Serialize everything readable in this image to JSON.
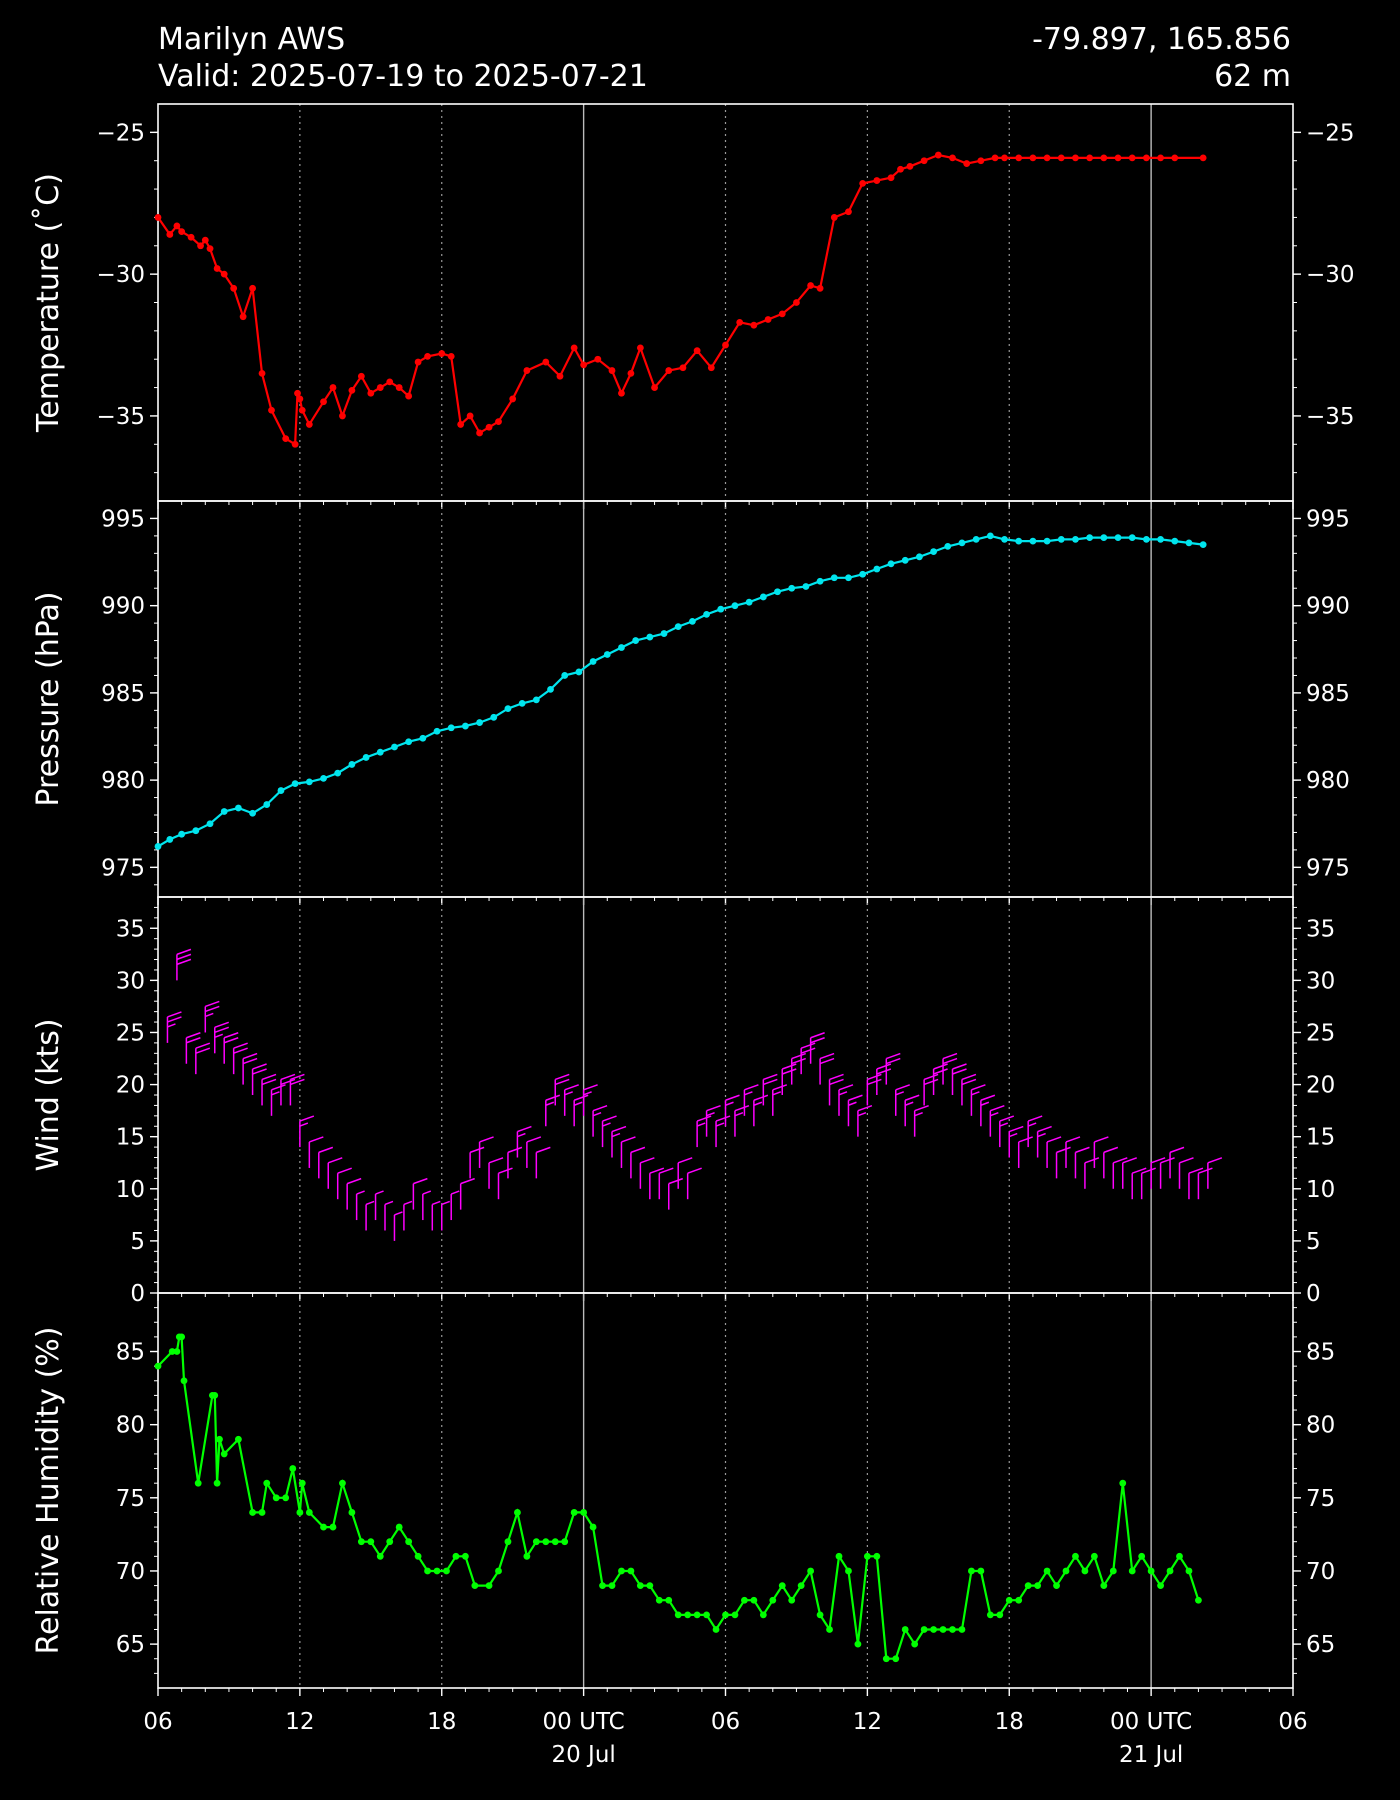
{
  "header": {
    "station": "Marilyn AWS",
    "valid": "Valid: 2025-07-19 to 2025-07-21",
    "coords": "-79.897, 165.856",
    "elevation": "62 m"
  },
  "x_ticks": [
    {
      "hour": 0,
      "label": "06",
      "sub": ""
    },
    {
      "hour": 6,
      "label": "12",
      "sub": ""
    },
    {
      "hour": 12,
      "label": "18",
      "sub": ""
    },
    {
      "hour": 18,
      "label": "00 UTC",
      "sub": "20 Jul"
    },
    {
      "hour": 24,
      "label": "06",
      "sub": ""
    },
    {
      "hour": 30,
      "label": "12",
      "sub": ""
    },
    {
      "hour": 36,
      "label": "18",
      "sub": ""
    },
    {
      "hour": 42,
      "label": "00 UTC",
      "sub": "21 Jul"
    },
    {
      "hour": 48,
      "label": "06",
      "sub": ""
    }
  ],
  "colors": {
    "temperature": "#ff0000",
    "pressure": "#00e5ee",
    "wind": "#ff00ff",
    "humidity": "#00ff00"
  },
  "chart_data": [
    {
      "type": "line",
      "ylabel": "Temperature ($^\\circ$C)",
      "ylabel_display": "Temperature (˚C)",
      "ylim": [
        -38.0,
        -24.0
      ],
      "yticks": [
        -25,
        -30,
        -35
      ],
      "ytick_labels": [
        "−25",
        "−30",
        "−35"
      ],
      "x_hours_since": "2025-07-19 06 UTC",
      "x": [
        0,
        0.5,
        0.8,
        1.0,
        1.4,
        1.8,
        2.0,
        2.2,
        2.5,
        2.8,
        3.2,
        3.6,
        4.0,
        4.4,
        4.8,
        5.4,
        5.8,
        5.9,
        6.0,
        6.1,
        6.4,
        7.0,
        7.4,
        7.8,
        8.2,
        8.6,
        9.0,
        9.4,
        9.8,
        10.2,
        10.6,
        11.0,
        11.4,
        12.0,
        12.4,
        12.8,
        13.2,
        13.6,
        14.0,
        14.4,
        15.0,
        15.6,
        16.4,
        17.0,
        17.6,
        18.0,
        18.6,
        19.2,
        19.6,
        20.0,
        20.4,
        21.0,
        21.6,
        22.2,
        22.8,
        23.4,
        24.0,
        24.6,
        25.2,
        25.8,
        26.4,
        27.0,
        27.6,
        28.0,
        28.6,
        29.2,
        29.8,
        30.4,
        31.0,
        31.4,
        31.8,
        32.4,
        33.0,
        33.6,
        34.2,
        34.8,
        35.4,
        35.8,
        36.4,
        37.0,
        37.6,
        38.2,
        38.8,
        39.4,
        40.0,
        40.6,
        41.2,
        41.8,
        42.4,
        43.0,
        44.2
      ],
      "values": [
        -28.0,
        -28.6,
        -28.3,
        -28.5,
        -28.7,
        -29.0,
        -28.8,
        -29.1,
        -29.8,
        -30.0,
        -30.5,
        -31.5,
        -30.5,
        -33.5,
        -34.8,
        -35.8,
        -36.0,
        -34.2,
        -34.4,
        -34.8,
        -35.3,
        -34.5,
        -34.0,
        -35.0,
        -34.1,
        -33.6,
        -34.2,
        -34.0,
        -33.8,
        -34.0,
        -34.3,
        -33.1,
        -32.9,
        -32.8,
        -32.9,
        -35.3,
        -35.0,
        -35.6,
        -35.4,
        -35.2,
        -34.4,
        -33.4,
        -33.1,
        -33.6,
        -32.6,
        -33.2,
        -33.0,
        -33.4,
        -34.2,
        -33.5,
        -32.6,
        -34.0,
        -33.4,
        -33.3,
        -32.7,
        -33.3,
        -32.5,
        -31.7,
        -31.8,
        -31.6,
        -31.4,
        -31.0,
        -30.4,
        -30.5,
        -28.0,
        -27.8,
        -26.8,
        -26.7,
        -26.6,
        -26.3,
        -26.2,
        -26.0,
        -25.8,
        -25.9,
        -26.1,
        -26.0,
        -25.9,
        -25.9,
        -25.9,
        -25.9,
        -25.9,
        -25.9,
        -25.9,
        -25.9,
        -25.9,
        -25.9,
        -25.9,
        -25.9,
        -25.9,
        -25.9,
        -25.9
      ]
    },
    {
      "type": "line",
      "ylabel": "Pressure (hPa)",
      "ylim": [
        973.3,
        996.0
      ],
      "yticks": [
        975,
        980,
        985,
        990,
        995
      ],
      "ytick_labels": [
        "975",
        "980",
        "985",
        "990",
        "995"
      ],
      "x_hours_since": "2025-07-19 06 UTC",
      "x": [
        0,
        0.5,
        1.0,
        1.6,
        2.2,
        2.8,
        3.4,
        4.0,
        4.6,
        5.2,
        5.8,
        6.4,
        7.0,
        7.6,
        8.2,
        8.8,
        9.4,
        10.0,
        10.6,
        11.2,
        11.8,
        12.4,
        13.0,
        13.6,
        14.2,
        14.8,
        15.4,
        16.0,
        16.6,
        17.2,
        17.8,
        18.4,
        19.0,
        19.6,
        20.2,
        20.8,
        21.4,
        22.0,
        22.6,
        23.2,
        23.8,
        24.4,
        25.0,
        25.6,
        26.2,
        26.8,
        27.4,
        28.0,
        28.6,
        29.2,
        29.8,
        30.4,
        31.0,
        31.6,
        32.2,
        32.8,
        33.4,
        34.0,
        34.6,
        35.2,
        35.8,
        36.4,
        37.0,
        37.6,
        38.2,
        38.8,
        39.4,
        40.0,
        40.6,
        41.2,
        41.8,
        42.4,
        43.0,
        43.6,
        44.2
      ],
      "values": [
        976.2,
        976.6,
        976.9,
        977.1,
        977.5,
        978.2,
        978.4,
        978.1,
        978.6,
        979.4,
        979.8,
        979.9,
        980.1,
        980.4,
        980.9,
        981.3,
        981.6,
        981.9,
        982.2,
        982.4,
        982.8,
        983.0,
        983.1,
        983.3,
        983.6,
        984.1,
        984.4,
        984.6,
        985.2,
        986.0,
        986.2,
        986.8,
        987.2,
        987.6,
        988.0,
        988.2,
        988.4,
        988.8,
        989.1,
        989.5,
        989.8,
        990.0,
        990.2,
        990.5,
        990.8,
        991.0,
        991.1,
        991.4,
        991.6,
        991.6,
        991.8,
        992.1,
        992.4,
        992.6,
        992.8,
        993.1,
        993.4,
        993.6,
        993.8,
        994.0,
        993.8,
        993.7,
        993.7,
        993.7,
        993.8,
        993.8,
        993.9,
        993.9,
        993.9,
        993.9,
        993.8,
        993.8,
        993.7,
        993.6,
        993.5
      ],
      "gaps": [
        [
          20.0,
          20.9
        ],
        [
          31.4,
          31.8
        ]
      ]
    },
    {
      "type": "scatter",
      "subtype": "wind-barbs",
      "ylabel": "Wind (kts)",
      "ylim": [
        0,
        38
      ],
      "yticks": [
        0,
        5,
        10,
        15,
        20,
        25,
        30,
        35
      ],
      "ytick_labels": [
        "0",
        "5",
        "10",
        "15",
        "20",
        "25",
        "30",
        "35"
      ],
      "x_hours_since": "2025-07-19 06 UTC",
      "x": [
        0.4,
        0.8,
        1.2,
        1.6,
        2.0,
        2.4,
        2.8,
        3.2,
        3.6,
        4.0,
        4.4,
        4.8,
        5.2,
        5.6,
        6.0,
        6.4,
        6.8,
        7.2,
        7.6,
        8.0,
        8.4,
        8.8,
        9.2,
        9.6,
        10.0,
        10.4,
        10.8,
        11.2,
        11.6,
        12.0,
        12.4,
        12.8,
        13.2,
        13.6,
        14.0,
        14.4,
        14.8,
        15.2,
        15.6,
        16.0,
        16.4,
        16.8,
        17.2,
        17.6,
        18.0,
        18.4,
        18.8,
        19.2,
        19.6,
        20.0,
        20.4,
        20.8,
        21.2,
        21.6,
        22.0,
        22.4,
        22.8,
        23.2,
        23.6,
        24.0,
        24.4,
        24.8,
        25.2,
        25.6,
        26.0,
        26.4,
        26.8,
        27.2,
        27.6,
        28.0,
        28.4,
        28.8,
        29.2,
        29.6,
        30.0,
        30.4,
        30.8,
        31.2,
        31.6,
        32.0,
        32.4,
        32.8,
        33.2,
        33.6,
        34.0,
        34.4,
        34.8,
        35.2,
        35.6,
        36.0,
        36.4,
        36.8,
        37.2,
        37.6,
        38.0,
        38.4,
        38.8,
        39.2,
        39.6,
        40.0,
        40.4,
        40.8,
        41.2,
        41.6,
        42.0,
        42.4,
        42.8,
        43.2,
        43.6,
        44.0,
        44.4
      ],
      "values": [
        24,
        30,
        22,
        21,
        25,
        23,
        22,
        21,
        20,
        19,
        18,
        17,
        18,
        18,
        14,
        12,
        11,
        10,
        9,
        8,
        7,
        6,
        7,
        6,
        5,
        6,
        8,
        7,
        6,
        6,
        7,
        8,
        11,
        12,
        10,
        9,
        11,
        13,
        12,
        11,
        16,
        18,
        17,
        16,
        17,
        15,
        14,
        13,
        12,
        11,
        10,
        9,
        9,
        8,
        10,
        9,
        14,
        15,
        14,
        16,
        15,
        17,
        16,
        18,
        17,
        19,
        20,
        21,
        22,
        20,
        18,
        17,
        16,
        15,
        18,
        19,
        20,
        17,
        16,
        15,
        18,
        19,
        20,
        19,
        18,
        17,
        16,
        15,
        14,
        13,
        12,
        14,
        13,
        12,
        11,
        12,
        11,
        10,
        12,
        11,
        10,
        10,
        9,
        9,
        10,
        10,
        11,
        10,
        9,
        9,
        10
      ]
    },
    {
      "type": "line",
      "ylabel": "Relative Humidity (%)",
      "ylim": [
        62.0,
        89.0
      ],
      "yticks": [
        65,
        70,
        75,
        80,
        85
      ],
      "ytick_labels": [
        "65",
        "70",
        "75",
        "80",
        "85"
      ],
      "x_hours_since": "2025-07-19 06 UTC",
      "x": [
        0,
        0.6,
        0.8,
        0.9,
        1.0,
        1.1,
        1.7,
        2.3,
        2.4,
        2.5,
        2.6,
        2.8,
        3.4,
        4.0,
        4.4,
        4.6,
        5.0,
        5.4,
        5.7,
        6.0,
        6.1,
        6.4,
        7.0,
        7.4,
        7.8,
        8.2,
        8.6,
        9.0,
        9.4,
        9.8,
        10.2,
        10.6,
        11.0,
        11.4,
        11.8,
        12.2,
        12.6,
        13.0,
        13.4,
        14.0,
        14.4,
        14.8,
        15.2,
        15.6,
        16.0,
        16.4,
        16.8,
        17.2,
        17.6,
        18.0,
        18.4,
        18.8,
        19.2,
        19.6,
        20.0,
        20.4,
        20.8,
        21.2,
        21.6,
        22.0,
        22.4,
        22.8,
        23.2,
        23.6,
        24.0,
        24.4,
        24.8,
        25.2,
        25.6,
        26.0,
        26.4,
        26.8,
        27.2,
        27.6,
        28.0,
        28.4,
        28.8,
        29.2,
        29.6,
        30.0,
        30.4,
        30.8,
        31.2,
        31.6,
        32.0,
        32.4,
        32.8,
        33.2,
        33.6,
        34.0,
        34.4,
        34.8,
        35.2,
        35.6,
        36.0,
        36.4,
        36.8,
        37.2,
        37.6,
        38.0,
        38.4,
        38.8,
        39.2,
        39.6,
        40.0,
        40.4,
        40.8,
        41.2,
        41.6,
        42.0,
        42.4,
        42.8,
        43.2,
        43.6,
        44.0
      ],
      "values": [
        84,
        85,
        85,
        86,
        86,
        83,
        76,
        82,
        82,
        76,
        79,
        78,
        79,
        74,
        74,
        76,
        75,
        75,
        77,
        74,
        76,
        74,
        73,
        73,
        76,
        74,
        72,
        72,
        71,
        72,
        73,
        72,
        71,
        70,
        70,
        70,
        71,
        71,
        69,
        69,
        70,
        72,
        74,
        71,
        72,
        72,
        72,
        72,
        74,
        74,
        73,
        69,
        69,
        70,
        70,
        69,
        69,
        68,
        68,
        67,
        67,
        67,
        67,
        66,
        67,
        67,
        68,
        68,
        67,
        68,
        69,
        68,
        69,
        70,
        67,
        66,
        71,
        70,
        65,
        71,
        71,
        64,
        64,
        66,
        65,
        66,
        66,
        66,
        66,
        66,
        70,
        70,
        67,
        67,
        68,
        68,
        69,
        69,
        70,
        69,
        70,
        71,
        70,
        71,
        69,
        70,
        76,
        70,
        71,
        70,
        69,
        70,
        71,
        70,
        68
      ]
    }
  ]
}
